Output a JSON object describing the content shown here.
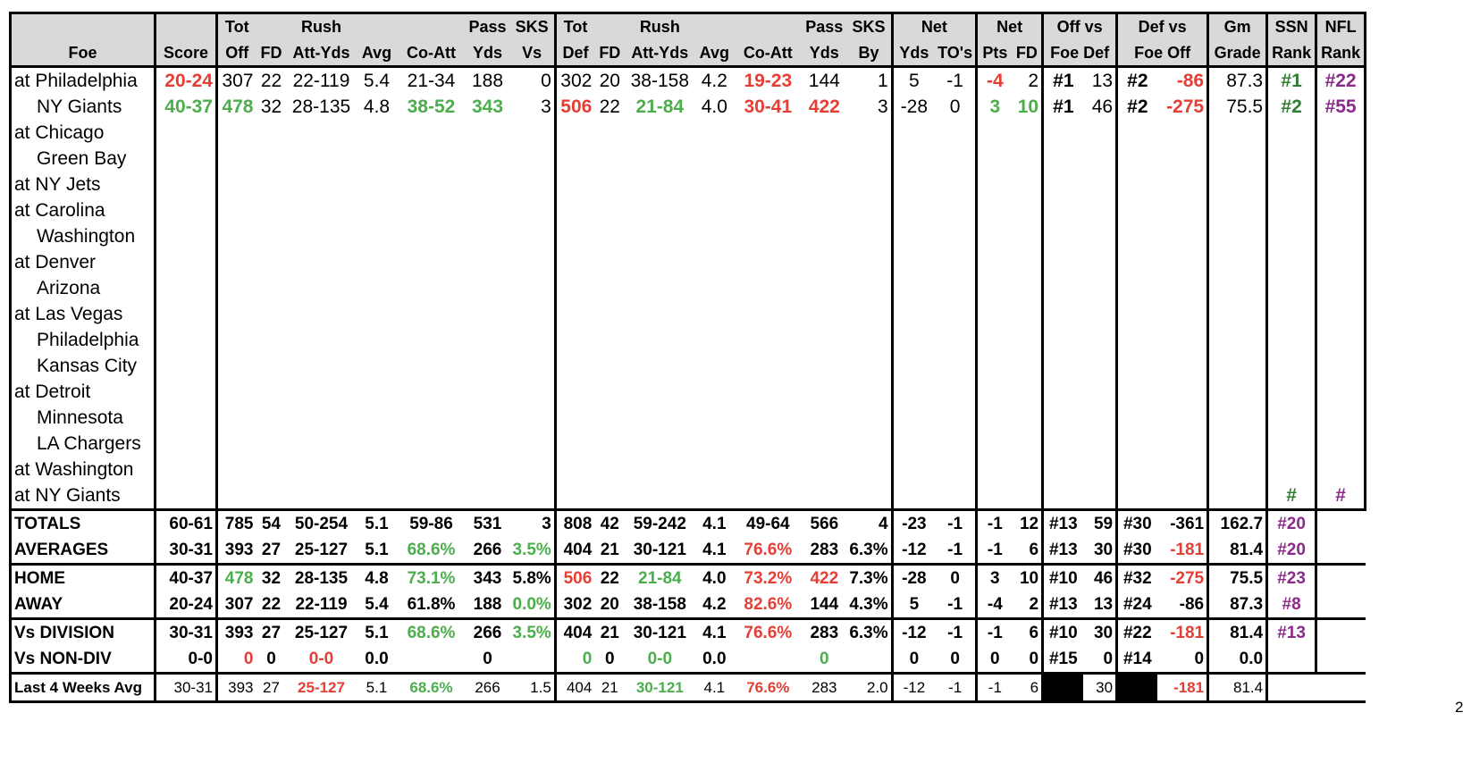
{
  "header": {
    "row1": {
      "tot": "Tot",
      "rush": "Rush",
      "pass": "Pass",
      "sks": "SKS",
      "tot2": "Tot",
      "rush2": "Rush",
      "pass2": "Pass",
      "sks2": "SKS",
      "net": "Net",
      "netpts": "Net",
      "offvs": "Off vs",
      "defvs": "Def vs",
      "gm": "Gm",
      "ssn": "SSN",
      "nfl": "NFL"
    },
    "row2": {
      "foe": "Foe",
      "score": "Score",
      "off": "Off",
      "fd": "FD",
      "attyds": "Att-Yds",
      "avg": "Avg",
      "coatt": "Co-Att",
      "yds": "Yds",
      "vs": "Vs",
      "def": "Def",
      "fd2": "FD",
      "attyds2": "Att-Yds",
      "avg2": "Avg",
      "coatt2": "Co-Att",
      "yds2": "Yds",
      "by": "By",
      "netyds": "Yds",
      "tos": "TO's",
      "pts": "Pts",
      "netfd": "FD",
      "foedef": "Foe Def",
      "foeoff": "Foe Off",
      "grade": "Grade",
      "rank": "Rank",
      "rank2": "Rank"
    }
  },
  "games": [
    {
      "foe": "at Philadelphia",
      "indent": false,
      "score": "20-24",
      "off": "307",
      "fd": "22",
      "rush": "22-119",
      "avg": "5.4",
      "coatt": "21-34",
      "pyds": "188",
      "sks": "0",
      "tdef": "302",
      "dfd": "20",
      "drush": "38-158",
      "davg": "4.2",
      "dcoatt": "19-23",
      "dpyds": "144",
      "sksby": "1",
      "netyds": "5",
      "nettos": "-1",
      "netpts": "-4",
      "netfd": "2",
      "offr": "#1",
      "offv": "13",
      "defr": "#2",
      "defv": "-86",
      "grade": "87.3",
      "ssn": "#1",
      "nfl": "#22"
    },
    {
      "foe": "NY Giants",
      "indent": true,
      "score": "40-37",
      "off": "478",
      "fd": "32",
      "rush": "28-135",
      "avg": "4.8",
      "coatt": "38-52",
      "pyds": "343",
      "sks": "3",
      "tdef": "506",
      "dfd": "22",
      "drush": "21-84",
      "davg": "4.0",
      "dcoatt": "30-41",
      "dpyds": "422",
      "sksby": "3",
      "netyds": "-28",
      "nettos": "0",
      "netpts": "3",
      "netfd": "10",
      "offr": "#1",
      "offv": "46",
      "defr": "#2",
      "defv": "-275",
      "grade": "75.5",
      "ssn": "#2",
      "nfl": "#55"
    },
    {
      "foe": "at Chicago",
      "indent": false
    },
    {
      "foe": "Green Bay",
      "indent": true
    },
    {
      "foe": "at NY Jets",
      "indent": false
    },
    {
      "foe": "at Carolina",
      "indent": false
    },
    {
      "foe": "Washington",
      "indent": true
    },
    {
      "foe": "at Denver",
      "indent": false
    },
    {
      "foe": "Arizona",
      "indent": true
    },
    {
      "foe": "at Las Vegas",
      "indent": false
    },
    {
      "foe": "Philadelphia",
      "indent": true
    },
    {
      "foe": "Kansas City",
      "indent": true
    },
    {
      "foe": "at Detroit",
      "indent": false
    },
    {
      "foe": "Minnesota",
      "indent": true
    },
    {
      "foe": "LA Chargers",
      "indent": true
    },
    {
      "foe": "at Washington",
      "indent": false
    },
    {
      "foe": "at NY Giants",
      "indent": false,
      "ssn": "#",
      "nfl": "#"
    }
  ],
  "summary": [
    {
      "label": "TOTALS",
      "score": "60-61",
      "off": "785",
      "fd": "54",
      "rush": "50-254",
      "avg": "5.1",
      "coatt": "59-86",
      "pyds": "531",
      "sks": "3",
      "tdef": "808",
      "dfd": "42",
      "drush": "59-242",
      "davg": "4.1",
      "dcoatt": "49-64",
      "dpyds": "566",
      "sksby": "4",
      "netyds": "-23",
      "nettos": "-1",
      "netpts": "-1",
      "netfd": "12",
      "offr": "#13",
      "offv": "59",
      "defr": "#30",
      "defv": "-361",
      "grade": "162.7",
      "ssn": "#20"
    },
    {
      "label": "AVERAGES",
      "score": "30-31",
      "off": "393",
      "fd": "27",
      "rush": "25-127",
      "avg": "5.1",
      "coatt": "68.6%",
      "pyds": "266",
      "sks": "3.5%",
      "tdef": "404",
      "dfd": "21",
      "drush": "30-121",
      "davg": "4.1",
      "dcoatt": "76.6%",
      "dpyds": "283",
      "sksby": "6.3%",
      "netyds": "-12",
      "nettos": "-1",
      "netpts": "-1",
      "netfd": "6",
      "offr": "#13",
      "offv": "30",
      "defr": "#30",
      "defv": "-181",
      "grade": "81.4",
      "ssn": "#20"
    },
    {
      "label": "HOME",
      "score": "40-37",
      "off": "478",
      "fd": "32",
      "rush": "28-135",
      "avg": "4.8",
      "coatt": "73.1%",
      "pyds": "343",
      "sks": "5.8%",
      "tdef": "506",
      "dfd": "22",
      "drush": "21-84",
      "davg": "4.0",
      "dcoatt": "73.2%",
      "dpyds": "422",
      "sksby": "7.3%",
      "netyds": "-28",
      "nettos": "0",
      "netpts": "3",
      "netfd": "10",
      "offr": "#10",
      "offv": "46",
      "defr": "#32",
      "defv": "-275",
      "grade": "75.5",
      "ssn": "#23"
    },
    {
      "label": "AWAY",
      "score": "20-24",
      "off": "307",
      "fd": "22",
      "rush": "22-119",
      "avg": "5.4",
      "coatt": "61.8%",
      "pyds": "188",
      "sks": "0.0%",
      "tdef": "302",
      "dfd": "20",
      "drush": "38-158",
      "davg": "4.2",
      "dcoatt": "82.6%",
      "dpyds": "144",
      "sksby": "4.3%",
      "netyds": "5",
      "nettos": "-1",
      "netpts": "-4",
      "netfd": "2",
      "offr": "#13",
      "offv": "13",
      "defr": "#24",
      "defv": "-86",
      "grade": "87.3",
      "ssn": "#8"
    },
    {
      "label": "Vs DIVISION",
      "score": "30-31",
      "off": "393",
      "fd": "27",
      "rush": "25-127",
      "avg": "5.1",
      "coatt": "68.6%",
      "pyds": "266",
      "sks": "3.5%",
      "tdef": "404",
      "dfd": "21",
      "drush": "30-121",
      "davg": "4.1",
      "dcoatt": "76.6%",
      "dpyds": "283",
      "sksby": "6.3%",
      "netyds": "-12",
      "nettos": "-1",
      "netpts": "-1",
      "netfd": "6",
      "offr": "#10",
      "offv": "30",
      "defr": "#22",
      "defv": "-181",
      "grade": "81.4",
      "ssn": "#13"
    },
    {
      "label": "Vs NON-DIV",
      "score": "0-0",
      "off": "0",
      "fd": "0",
      "rush": "0-0",
      "avg": "0.0",
      "coatt": "",
      "pyds": "0",
      "sks": "",
      "tdef": "0",
      "dfd": "0",
      "drush": "0-0",
      "davg": "0.0",
      "dcoatt": "",
      "dpyds": "0",
      "sksby": "",
      "netyds": "0",
      "nettos": "0",
      "netpts": "0",
      "netfd": "0",
      "offr": "#15",
      "offv": "0",
      "defr": "#14",
      "defv": "0",
      "grade": "0.0",
      "ssn": ""
    }
  ],
  "last4": {
    "label": "Last 4 Weeks Avg",
    "score": "30-31",
    "off": "393",
    "fd": "27",
    "rush": "25-127",
    "avg": "5.1",
    "coatt": "68.6%",
    "pyds": "266",
    "sks": "1.5",
    "tdef": "404",
    "dfd": "21",
    "drush": "30-121",
    "davg": "4.1",
    "dcoatt": "76.6%",
    "dpyds": "283",
    "sksby": "2.0",
    "netyds": "-12",
    "nettos": "-1",
    "netpts": "-1",
    "netfd": "6",
    "offv": "30",
    "defv": "-181",
    "grade": "81.4"
  },
  "edge_glyph": "2",
  "colors": {
    "red": "#e53f35",
    "green": "#4cae4c",
    "purple": "#8a2a8a",
    "dark_green": "#2e7d32",
    "header_bg": "#d9d9d9"
  }
}
